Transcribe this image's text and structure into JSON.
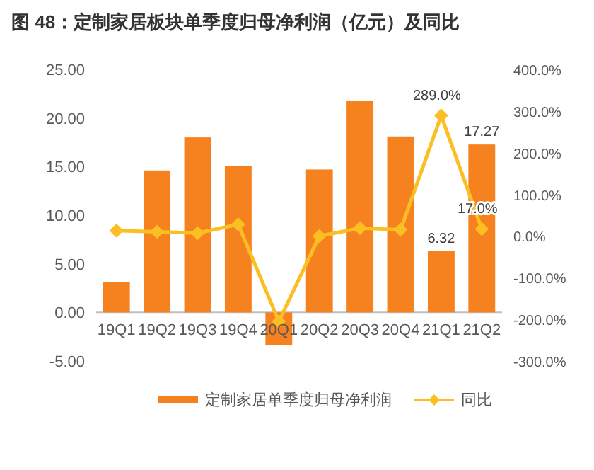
{
  "chart_data": {
    "type": "bar",
    "title": "图 48：定制家居板块单季度归母净利润（亿元）及同比",
    "categories": [
      "19Q1",
      "19Q2",
      "19Q3",
      "19Q4",
      "20Q1",
      "20Q2",
      "20Q3",
      "20Q4",
      "21Q1",
      "21Q2"
    ],
    "series": [
      {
        "name": "定制家居单季度归母净利润",
        "color": "#f5821f",
        "values": [
          3.1,
          14.6,
          18.0,
          15.1,
          -3.4,
          14.7,
          21.8,
          18.1,
          6.32,
          17.27
        ],
        "value_labels": [
          null,
          null,
          null,
          null,
          null,
          null,
          null,
          null,
          "6.32",
          "17.27"
        ]
      },
      {
        "name": "同比",
        "type": "line",
        "axis": "y2",
        "color": "#fbbf24",
        "marker": "diamond",
        "values": [
          13,
          10,
          7,
          28,
          -205,
          0,
          19,
          15,
          289.0,
          17.0
        ],
        "value_labels": [
          null,
          null,
          null,
          null,
          null,
          null,
          null,
          null,
          "289.0%",
          "17.0%"
        ]
      }
    ],
    "ylim": [
      -5,
      25
    ],
    "yticks": [
      {
        "value": -5,
        "label": "-5.00"
      },
      {
        "value": 0,
        "label": "0.00"
      },
      {
        "value": 5,
        "label": "5.00"
      },
      {
        "value": 10,
        "label": "10.00"
      },
      {
        "value": 15,
        "label": "15.00"
      },
      {
        "value": 20,
        "label": "20.00"
      },
      {
        "value": 25,
        "label": "25.00"
      }
    ],
    "y2lim": [
      -300,
      400
    ],
    "y2ticks": [
      {
        "value": -300,
        "label": "-300.0%"
      },
      {
        "value": -200,
        "label": "-200.0%"
      },
      {
        "value": -100,
        "label": "-100.0%"
      },
      {
        "value": 0,
        "label": "0.0%"
      },
      {
        "value": 100,
        "label": "100.0%"
      },
      {
        "value": 200,
        "label": "200.0%"
      },
      {
        "value": 300,
        "label": "300.0%"
      },
      {
        "value": 400,
        "label": "400.0%"
      }
    ],
    "grid": false,
    "legend": "bottom"
  }
}
